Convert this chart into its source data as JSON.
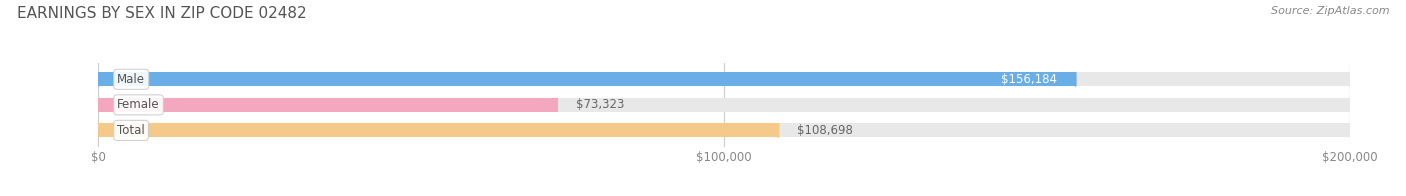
{
  "title": "EARNINGS BY SEX IN ZIP CODE 02482",
  "source": "Source: ZipAtlas.com",
  "categories": [
    "Male",
    "Female",
    "Total"
  ],
  "values": [
    156184,
    73323,
    108698
  ],
  "bar_colors": [
    "#6aaee8",
    "#f4a8c0",
    "#f5c98a"
  ],
  "bar_bg_color": "#e8e8e8",
  "xlim": [
    0,
    200000
  ],
  "xtick_values": [
    0,
    100000,
    200000
  ],
  "xtick_labels": [
    "$0",
    "$100,000",
    "$200,000"
  ],
  "title_fontsize": 11,
  "source_fontsize": 8,
  "bar_height": 0.55,
  "fig_bg_color": "#ffffff",
  "value_inside": [
    true,
    false,
    false
  ],
  "value_labels": [
    "$156,184",
    "$73,323",
    "$108,698"
  ]
}
